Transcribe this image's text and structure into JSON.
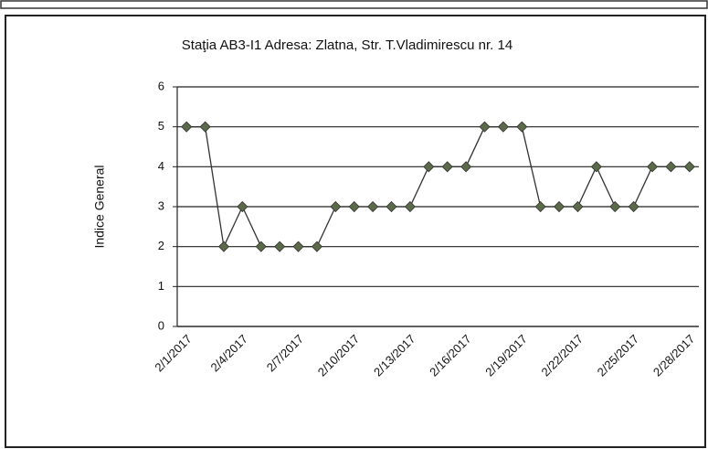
{
  "chart_data": {
    "type": "line",
    "title": "Staţia AB3-I1 Adresa: Zlatna, Str. T.Vladimirescu nr. 14",
    "y_label": "Indice General",
    "categories": [
      "2/1/2017",
      null,
      null,
      "2/4/2017",
      null,
      null,
      "2/7/2017",
      null,
      null,
      "2/10/2017",
      null,
      null,
      "2/13/2017",
      null,
      null,
      "2/16/2017",
      null,
      null,
      "2/19/2017",
      null,
      null,
      "2/22/2017",
      null,
      null,
      "2/25/2017",
      null,
      null,
      "2/28/2017"
    ],
    "series": [
      {
        "color": "#5b6a48",
        "values": [
          5,
          5,
          2,
          3,
          2,
          2,
          2,
          2,
          3,
          3,
          3,
          3,
          3,
          4,
          4,
          4,
          5,
          5,
          5,
          3,
          3,
          3,
          4,
          3,
          3,
          4,
          4,
          4
        ]
      }
    ],
    "ylim": [
      0,
      6
    ],
    "yticks": [
      0,
      1,
      2,
      3,
      4,
      5,
      6
    ],
    "grid": true
  }
}
